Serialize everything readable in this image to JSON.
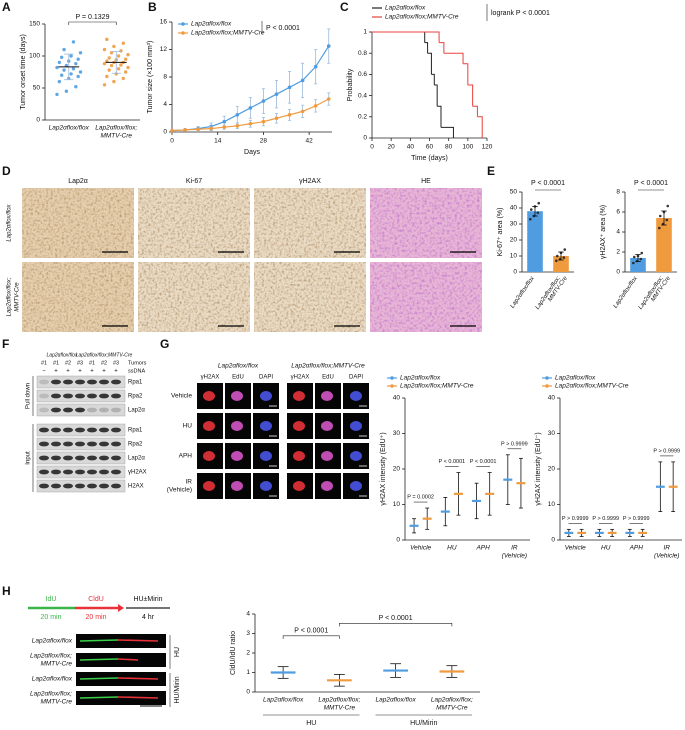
{
  "panels": {
    "letters": [
      "A",
      "B",
      "C",
      "D",
      "E",
      "F",
      "G",
      "H"
    ]
  },
  "images_d": {
    "columns": [
      "Lap2α",
      "Ki-67",
      "γH2AX",
      "HE"
    ],
    "rows": [
      [
        "Lap2αflox/flox"
      ],
      [
        "Lap2αflox/flox;",
        "MMTV-Cre"
      ]
    ]
  },
  "blot_f": {
    "groups": [
      "Lap2αflox/flox",
      "Lap2αflox/flox;MMTV-Cre"
    ],
    "lanes": [
      "#1",
      "#1",
      "#2",
      "#3",
      "#1",
      "#2",
      "#3"
    ],
    "lanes_label": "Tumors",
    "ssdna": [
      "−",
      "+",
      "+",
      "+",
      "+",
      "+",
      "+"
    ],
    "ssdna_label": "ssDNA",
    "pulldown_label": "Pull down",
    "input_label": "Input",
    "pulldown_bands": [
      "Rpa1",
      "Rpa2",
      "Lap2α"
    ],
    "input_bands": [
      "Rpa1",
      "Rpa2",
      "Lap2α",
      "γH2AX",
      "H2AX"
    ]
  },
  "images_g": {
    "groups": [
      "Lap2αflox/flox",
      "Lap2αflox/flox;MMTV-Cre"
    ],
    "channels": [
      "γH2AX",
      "EdU",
      "DAPI",
      "γH2AX",
      "EdU",
      "DAPI"
    ],
    "rows": [
      [
        "Vehicle"
      ],
      [
        "HU"
      ],
      [
        "APH"
      ],
      [
        "IR",
        "(Vehicle)"
      ]
    ]
  },
  "scheme_h": {
    "steps": [
      "IdU",
      "CldU",
      "HU±Mirin"
    ],
    "durations": [
      "20 min",
      "20 min",
      "4 hr"
    ],
    "rows": [
      [
        "Lap2αflox/flox"
      ],
      [
        "Lap2αflox/flox;",
        "MMTV-Cre"
      ],
      [
        "Lap2αflox/flox"
      ],
      [
        "Lap2αflox/flox;",
        "MMTV-Cre"
      ]
    ],
    "treatments": [
      "HU",
      "HU/Mirin"
    ]
  },
  "chart_data": [
    {
      "type": "dot",
      "ylabel": "Tumor onset time (days)",
      "categories": [
        [
          "Lap2αflox/flox"
        ],
        [
          "Lap2αflox/flox;",
          "MMTV-Cre"
        ]
      ],
      "values": [
        83,
        90
      ],
      "errors": [
        20,
        17
      ],
      "colors": [
        "#4f9de0",
        "#f09a3e"
      ],
      "points": [
        [
          40,
          45,
          52,
          60,
          65,
          68,
          70,
          72,
          75,
          78,
          80,
          82,
          85,
          88,
          90,
          92,
          95,
          98,
          100,
          105,
          110,
          122
        ],
        [
          55,
          60,
          65,
          68,
          72,
          75,
          78,
          80,
          82,
          85,
          86,
          88,
          90,
          90,
          92,
          94,
          95,
          97,
          100,
          102,
          105,
          108,
          110,
          115,
          120,
          126
        ]
      ],
      "ylim": [
        0,
        150
      ],
      "yticks": [
        0,
        50,
        100,
        150
      ],
      "annotations": [
        "P = 0.1329"
      ]
    },
    {
      "type": "line",
      "ylabel": "Tumor size (×100 mm³)",
      "xlabel": "Days",
      "x": [
        0,
        4,
        8,
        12,
        16,
        20,
        24,
        28,
        32,
        36,
        40,
        44,
        48
      ],
      "series": [
        {
          "name": "Lap2αflox/flox",
          "color": "#4f9de0",
          "values": [
            0.2,
            0.3,
            0.5,
            0.8,
            1.5,
            2.5,
            3.5,
            4.5,
            5.5,
            6.5,
            7.5,
            9.5,
            12.5
          ],
          "errors": [
            0.1,
            0.2,
            0.3,
            0.5,
            0.8,
            1.2,
            1.5,
            1.8,
            2,
            2.3,
            2.5,
            2.5,
            2.5
          ]
        },
        {
          "name": "Lap2αflox/flox;MMTV-Cre",
          "color": "#f09a3e",
          "values": [
            0.2,
            0.3,
            0.4,
            0.5,
            0.7,
            0.9,
            1.2,
            1.5,
            2,
            2.5,
            3,
            3.8,
            4.8
          ],
          "errors": [
            0.1,
            0.1,
            0.2,
            0.3,
            0.3,
            0.4,
            0.5,
            0.6,
            0.7,
            0.8,
            0.9,
            0.9,
            0.9
          ]
        }
      ],
      "xlim": [
        0,
        49
      ],
      "xticks": [
        0,
        14,
        28,
        42
      ],
      "ylim": [
        0,
        16
      ],
      "yticks": [
        0,
        4,
        8,
        12,
        16
      ],
      "annotations": [
        "P < 0.0001"
      ]
    },
    {
      "type": "step",
      "ylabel": "Probability",
      "xlabel": "Time (days)",
      "series": [
        {
          "name": "Lap2αflox/flox",
          "color": "#222222",
          "x": [
            0,
            55,
            58,
            62,
            65,
            68,
            72,
            85
          ],
          "values": [
            1,
            0.9,
            0.8,
            0.6,
            0.5,
            0.3,
            0.1,
            0
          ]
        },
        {
          "name": "Lap2αflox/flox;MMTV-Cre",
          "color": "#e8423c",
          "x": [
            0,
            70,
            75,
            95,
            100,
            105,
            110,
            115
          ],
          "values": [
            1,
            0.9,
            0.8,
            0.7,
            0.5,
            0.3,
            0.2,
            0
          ]
        }
      ],
      "xlim": [
        0,
        120
      ],
      "xticks": [
        0,
        20,
        40,
        60,
        80,
        100,
        120
      ],
      "ylim": [
        0,
        1
      ],
      "yticks": [
        0,
        0.2,
        0.4,
        0.6,
        0.8,
        1
      ],
      "annotations": [
        "logrank P < 0.0001"
      ]
    },
    {
      "type": "bar",
      "ylabel": "Ki-67⁺ area (%)",
      "categories": [
        [
          "Lap2αflox/flox"
        ],
        [
          "Lap2αflox/flox;",
          "MMTV-Cre"
        ]
      ],
      "values": [
        38,
        10
      ],
      "errors": [
        3,
        2.5
      ],
      "colors": [
        "#4f9de0",
        "#f09a3e"
      ],
      "points": [
        [
          33,
          35,
          37,
          39,
          41,
          43
        ],
        [
          7,
          8,
          9,
          10,
          12,
          14
        ]
      ],
      "ylim": [
        0,
        50
      ],
      "yticks": [
        0,
        10,
        20,
        30,
        40,
        50
      ],
      "annotations": [
        "P < 0.0001"
      ]
    },
    {
      "type": "bar",
      "ylabel": "γH2AX⁺ area (%)",
      "categories": [
        [
          "Lap2αflox/flox"
        ],
        [
          "Lap2αflox/flox;",
          "MMTV-Cre"
        ]
      ],
      "values": [
        1.4,
        5.4
      ],
      "errors": [
        0.35,
        0.7
      ],
      "colors": [
        "#4f9de0",
        "#f09a3e"
      ],
      "points": [
        [
          0.9,
          1.1,
          1.3,
          1.5,
          1.6,
          1.9
        ],
        [
          4.4,
          4.8,
          5.2,
          5.6,
          6.0,
          6.6
        ]
      ],
      "ylim": [
        0,
        8
      ],
      "yticks": [
        0,
        2,
        4,
        6,
        8
      ],
      "annotations": [
        "P < 0.0001"
      ]
    },
    {
      "type": "dot",
      "ylabel": "γH2AX intensity (EdU⁺)",
      "categories": [
        [
          "Vehicle"
        ],
        [
          "HU"
        ],
        [
          "APH"
        ],
        [
          "IR",
          "(Vehicle)"
        ]
      ],
      "series": [
        {
          "name": "Lap2αflox/flox",
          "color": "#4f9de0",
          "values": [
            4,
            8,
            11,
            17
          ],
          "errors": [
            2,
            4,
            5,
            7
          ]
        },
        {
          "name": "Lap2αflox/flox;MMTV-Cre",
          "color": "#f09a3e",
          "values": [
            6,
            13,
            13,
            16
          ],
          "errors": [
            3,
            6,
            6,
            7
          ]
        }
      ],
      "ylim": [
        0,
        40
      ],
      "yticks": [
        0,
        10,
        20,
        30,
        40
      ],
      "annotations": [
        "P = 0.0002",
        "P < 0.0001",
        "P < 0.0001",
        "P > 0.9999"
      ]
    },
    {
      "type": "dot",
      "ylabel": "γH2AX intensity (EdU⁻)",
      "categories": [
        [
          "Vehicle"
        ],
        [
          "HU"
        ],
        [
          "APH"
        ],
        [
          "IR",
          "(Vehicle)"
        ]
      ],
      "series": [
        {
          "name": "Lap2αflox/flox",
          "color": "#4f9de0",
          "values": [
            2,
            2,
            2,
            15
          ],
          "errors": [
            1,
            1,
            1,
            7
          ]
        },
        {
          "name": "Lap2αflox/flox;MMTV-Cre",
          "color": "#f09a3e",
          "values": [
            2,
            2,
            2,
            15
          ],
          "errors": [
            1,
            1,
            1,
            7
          ]
        }
      ],
      "ylim": [
        0,
        40
      ],
      "yticks": [
        0,
        10,
        20,
        30,
        40
      ],
      "annotations": [
        "P > 0.9999",
        "P > 0.9999",
        "P > 0.9999",
        "P > 0.9999"
      ]
    },
    {
      "type": "dot",
      "ylabel": "CldU/IdU ratio",
      "categories": [
        [
          "Lap2αflox/flox"
        ],
        [
          "Lap2αflox/flox;",
          "MMTV-Cre"
        ],
        [
          "Lap2αflox/flox"
        ],
        [
          "Lap2αflox/flox;",
          "MMTV-Cre"
        ]
      ],
      "groups": [
        "HU",
        "HU/Mirin"
      ],
      "values": [
        1.0,
        0.6,
        1.1,
        1.05
      ],
      "errors": [
        0.3,
        0.3,
        0.35,
        0.3
      ],
      "colors": [
        "#4f9de0",
        "#f09a3e",
        "#4f9de0",
        "#f09a3e"
      ],
      "ylim": [
        0,
        4
      ],
      "yticks": [
        0,
        1,
        2,
        3,
        4
      ],
      "annotations": [
        "P < 0.0001",
        "P < 0.0001"
      ]
    }
  ]
}
